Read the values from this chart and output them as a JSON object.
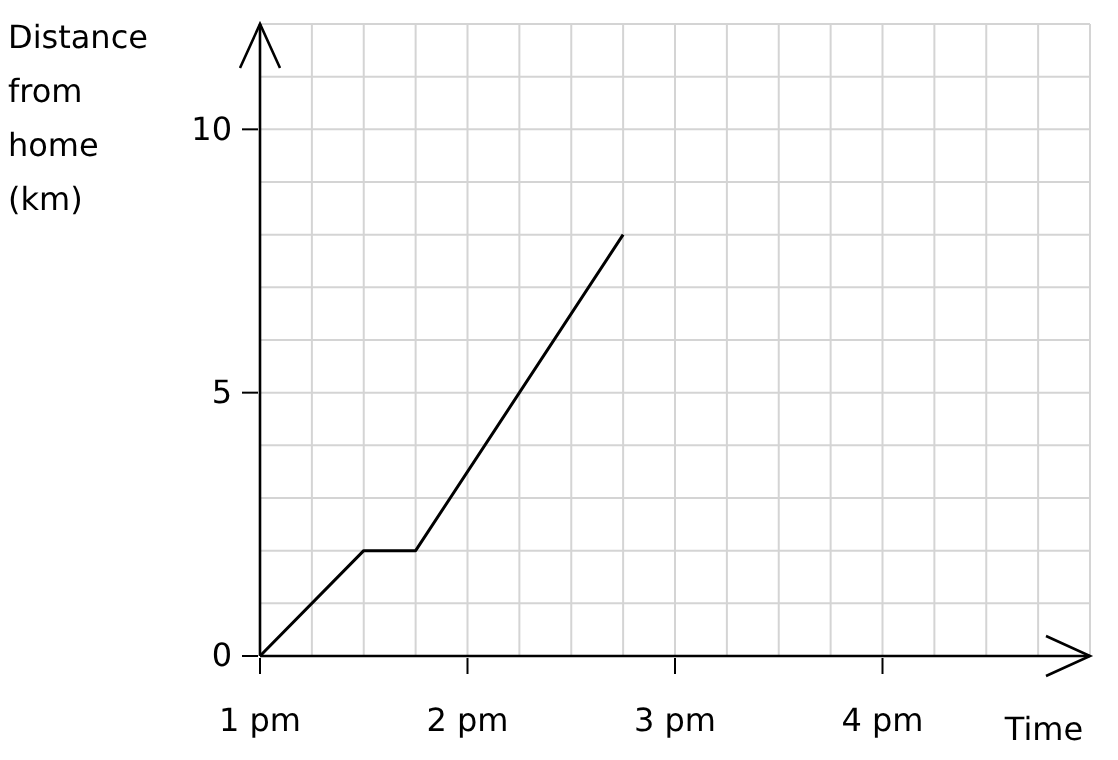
{
  "chart_data": {
    "type": "line",
    "xlabel": "Time",
    "ylabel": "Distance from home (km)",
    "x": [
      1,
      1.5,
      1.75,
      2.75
    ],
    "series": [
      {
        "color": "#000000",
        "values": [
          0,
          2,
          2,
          8
        ]
      }
    ],
    "xlim": [
      1,
      5
    ],
    "xticks": [
      {
        "value": 1,
        "label": "1 pm"
      },
      {
        "value": 1.25,
        "label": null
      },
      {
        "value": 1.5,
        "label": null
      },
      {
        "value": 1.75,
        "label": null
      },
      {
        "value": 2,
        "label": "2 pm"
      },
      {
        "value": 2.25,
        "label": null
      },
      {
        "value": 2.5,
        "label": null
      },
      {
        "value": 2.75,
        "label": null
      },
      {
        "value": 3,
        "label": "3 pm"
      },
      {
        "value": 3.25,
        "label": null
      },
      {
        "value": 3.5,
        "label": null
      },
      {
        "value": 3.75,
        "label": null
      },
      {
        "value": 4,
        "label": "4 pm"
      },
      {
        "value": 4.25,
        "label": null
      },
      {
        "value": 4.5,
        "label": null
      },
      {
        "value": 4.75,
        "label": null
      },
      {
        "value": 5,
        "label": null
      }
    ],
    "ylim": [
      0,
      12
    ],
    "yticks": [
      0,
      {
        "value": 1,
        "label": null
      },
      {
        "value": 2,
        "label": null
      },
      {
        "value": 3,
        "label": null
      },
      {
        "value": 4,
        "label": null
      },
      5,
      {
        "value": 6,
        "label": null
      },
      {
        "value": 7,
        "label": null
      },
      {
        "value": 8,
        "label": null
      },
      {
        "value": 9,
        "label": null
      },
      10,
      {
        "value": 11,
        "label": null
      },
      {
        "value": 12,
        "label": null
      }
    ],
    "grid": true,
    "marker": "none",
    "line_style": "solid"
  }
}
